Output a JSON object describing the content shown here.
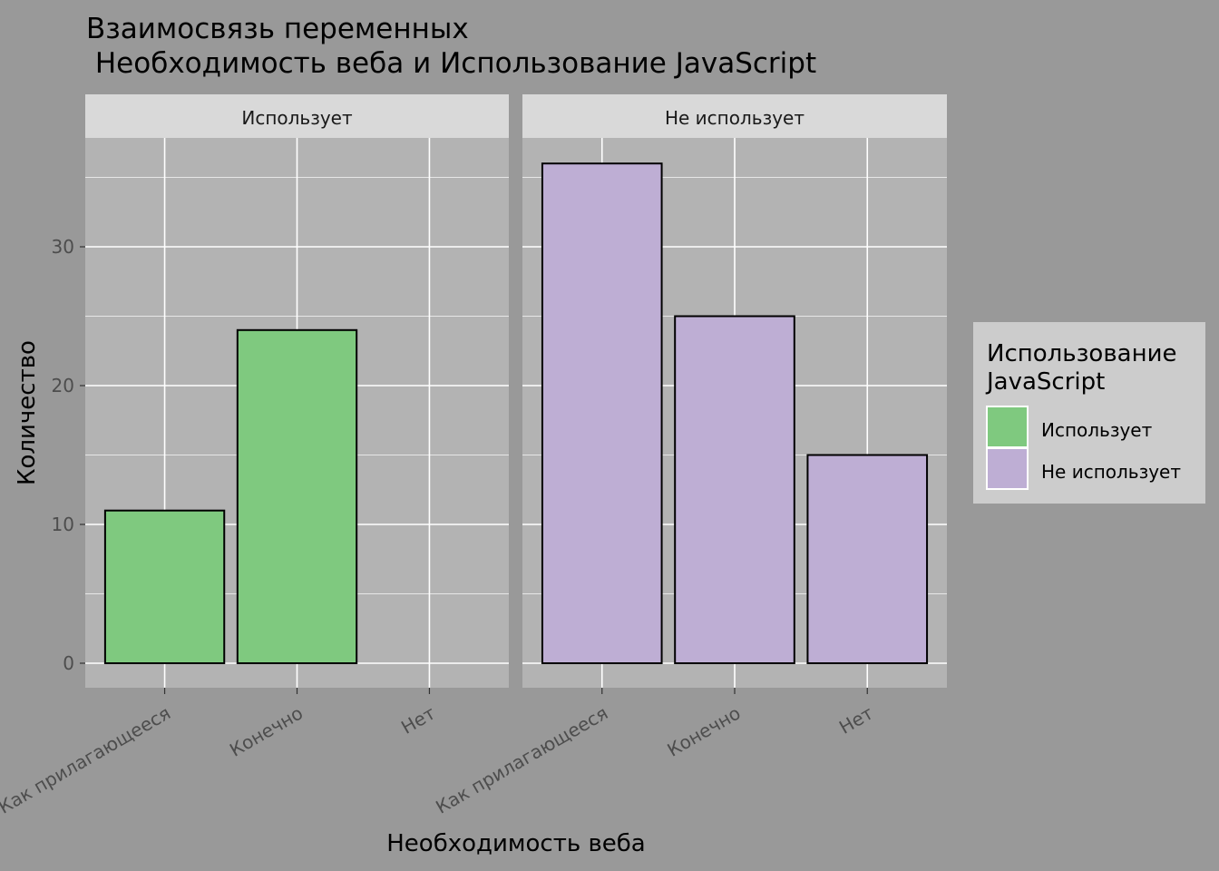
{
  "chart_data": {
    "type": "bar",
    "title_line1": "Взаимосвязь переменных",
    "title_line2": " Необходимость веба и Использование JavaScript",
    "xlabel": "Необходимость веба",
    "ylabel": "Количество",
    "categories": [
      "Как прилагающееся",
      "Конечно",
      "Нет"
    ],
    "ylim": [
      0,
      37.8
    ],
    "yticks": [
      0,
      10,
      20,
      30
    ],
    "grid": true,
    "legend": {
      "title_line1": "Использование",
      "title_line2": "JavaScript",
      "placement": "right",
      "items": [
        {
          "label": "Использует",
          "color": "#7fc97f"
        },
        {
          "label": "Не использует",
          "color": "#beaed4"
        }
      ]
    },
    "facets": [
      {
        "label": "Использует",
        "color": "#7fc97f",
        "values": [
          11,
          24,
          null
        ]
      },
      {
        "label": "Не использует",
        "color": "#beaed4",
        "values": [
          36,
          25,
          15
        ]
      }
    ]
  },
  "colors": {
    "background": "#999999",
    "panel": "#b3b3b3",
    "strip": "#d9d9d9",
    "legend_box": "#cccccc",
    "grid": "#ffffff",
    "axis_text": "#4d4d4d"
  }
}
